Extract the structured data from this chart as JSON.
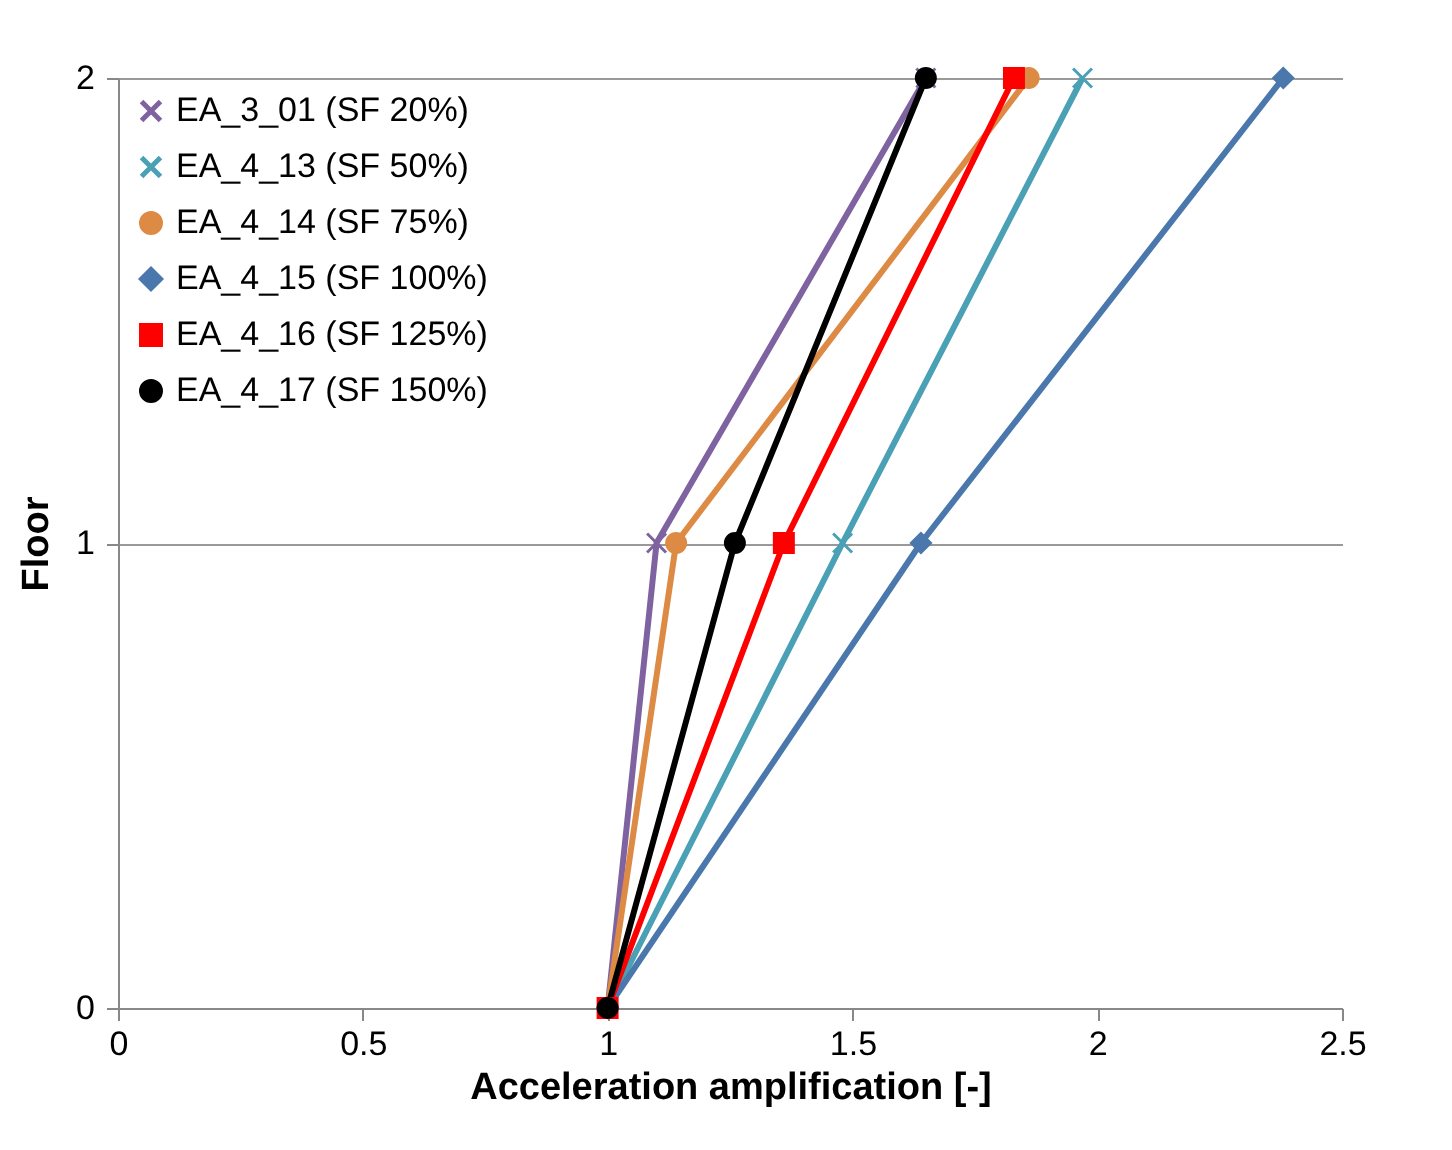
{
  "chart_data": {
    "type": "line",
    "xlabel": "Acceleration amplification [-]",
    "ylabel": "Floor",
    "xlim": [
      0,
      2.5
    ],
    "xticks": [
      0,
      0.5,
      1,
      1.5,
      2,
      2.5
    ],
    "ylim": [
      0,
      2
    ],
    "yticks": [
      0,
      1,
      2
    ],
    "grid": "y",
    "legend": "top left",
    "series": [
      {
        "name": "EA_3_01 (SF 20%)",
        "color": "#7f63a1",
        "marker": "cross",
        "x": [
          1,
          1.1,
          1.65
        ],
        "values": [
          0,
          1,
          2
        ]
      },
      {
        "name": "EA_4_13 (SF 50%)",
        "color": "#4aa0b5",
        "marker": "cross",
        "x": [
          1,
          1.48,
          1.97
        ],
        "values": [
          0,
          1,
          2
        ]
      },
      {
        "name": "EA_4_14 (SF 75%)",
        "color": "#dd8a45",
        "marker": "circle",
        "x": [
          1,
          1.14,
          1.86
        ],
        "values": [
          0,
          1,
          2
        ]
      },
      {
        "name": "EA_4_15 (SF 100%)",
        "color": "#4a78ad",
        "marker": "diamond",
        "x": [
          1,
          1.64,
          2.38
        ],
        "values": [
          0,
          1,
          2
        ]
      },
      {
        "name": "EA_4_16 (SF 125%)",
        "color": "#ff0000",
        "marker": "square",
        "x": [
          1,
          1.36,
          1.83
        ],
        "values": [
          0,
          1,
          2
        ]
      },
      {
        "name": "EA_4_17 (SF 150%)",
        "color": "#000000",
        "marker": "circle",
        "x": [
          1,
          1.26,
          1.65
        ],
        "values": [
          0,
          1,
          2
        ]
      }
    ]
  }
}
